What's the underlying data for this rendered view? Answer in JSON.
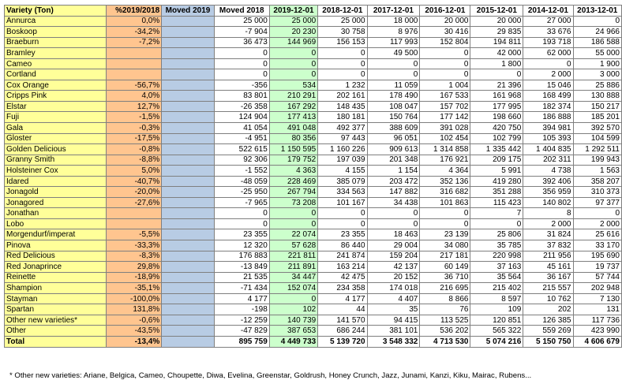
{
  "columns": [
    "Variety (Ton)",
    "%2019/2018",
    "Moved 2019",
    "Moved 2018",
    "2019-12-01",
    "2018-12-01",
    "2017-12-01",
    "2016-12-01",
    "2015-12-01",
    "2014-12-01",
    "2013-12-01"
  ],
  "rows": [
    [
      "Annurca",
      "0,0%",
      "",
      "25 000",
      "25 000",
      "25 000",
      "18 000",
      "20 000",
      "20 000",
      "27 000",
      "0"
    ],
    [
      "Boskoop",
      "-34,2%",
      "",
      "-7 904",
      "20 230",
      "30 758",
      "8 976",
      "30 416",
      "29 835",
      "33 676",
      "24 966"
    ],
    [
      "Braeburn",
      "-7,2%",
      "",
      "36 473",
      "144 969",
      "156 153",
      "117 993",
      "152 804",
      "194 811",
      "193 718",
      "186 588"
    ],
    [
      "Bramley",
      "",
      "",
      "0",
      "0",
      "0",
      "49 500",
      "0",
      "42 000",
      "62 000",
      "55 000"
    ],
    [
      "Cameo",
      "",
      "",
      "0",
      "0",
      "0",
      "0",
      "0",
      "1 800",
      "0",
      "1 900"
    ],
    [
      "Cortland",
      "",
      "",
      "0",
      "0",
      "0",
      "0",
      "0",
      "0",
      "2 000",
      "3 000"
    ],
    [
      "Cox Orange",
      "-56,7%",
      "",
      "-356",
      "534",
      "1 232",
      "11 059",
      "1 004",
      "21 396",
      "15 046",
      "25 886"
    ],
    [
      "Cripps Pink",
      "4,0%",
      "",
      "83 801",
      "210 291",
      "202 161",
      "178 490",
      "167 533",
      "161 968",
      "168 499",
      "130 888"
    ],
    [
      "Elstar",
      "12,7%",
      "",
      "-26 358",
      "167 292",
      "148 435",
      "108 047",
      "157 702",
      "177 995",
      "182 374",
      "150 217"
    ],
    [
      "Fuji",
      "-1,5%",
      "",
      "124 904",
      "177 413",
      "180 181",
      "150 764",
      "177 142",
      "198 660",
      "186 888",
      "185 201"
    ],
    [
      "Gala",
      "-0,3%",
      "",
      "41 054",
      "491 048",
      "492 377",
      "388 609",
      "391 028",
      "420 750",
      "394 981",
      "392 570"
    ],
    [
      "Gloster",
      "-17,5%",
      "",
      "-4 951",
      "80 356",
      "97 443",
      "96 051",
      "102 454",
      "102 799",
      "105 393",
      "104 599"
    ],
    [
      "Golden Delicious",
      "-0,8%",
      "",
      "522 615",
      "1 150 595",
      "1 160 226",
      "909 613",
      "1 314 858",
      "1 335 442",
      "1 404 835",
      "1 292 511"
    ],
    [
      "Granny Smith",
      "-8,8%",
      "",
      "92 306",
      "179 752",
      "197 039",
      "201 348",
      "176 921",
      "209 175",
      "202 311",
      "199 943"
    ],
    [
      "Holsteiner Cox",
      "5,0%",
      "",
      "-1 552",
      "4 363",
      "4 155",
      "1 154",
      "4 364",
      "5 991",
      "4 738",
      "1 563"
    ],
    [
      "Idared",
      "-40,7%",
      "",
      "-48 059",
      "228 469",
      "385 079",
      "203 472",
      "352 136",
      "419 280",
      "392 406",
      "358 207"
    ],
    [
      "Jonagold",
      "-20,0%",
      "",
      "-25 950",
      "267 794",
      "334 563",
      "147 882",
      "316 682",
      "351 288",
      "356 959",
      "310 373"
    ],
    [
      "Jonagored",
      "-27,6%",
      "",
      "-7 965",
      "73 208",
      "101 167",
      "34 438",
      "101 863",
      "115 423",
      "140 802",
      "97 377"
    ],
    [
      "Jonathan",
      "",
      "",
      "0",
      "0",
      "0",
      "0",
      "0",
      "7",
      "8",
      "0"
    ],
    [
      "Lobo",
      "",
      "",
      "0",
      "0",
      "0",
      "0",
      "0",
      "0",
      "2 000",
      "2 000"
    ],
    [
      "Morgendurf/imperat",
      "-5,5%",
      "",
      "23 355",
      "22 074",
      "23 355",
      "18 463",
      "23 139",
      "25 806",
      "31 824",
      "25 616"
    ],
    [
      "Pinova",
      "-33,3%",
      "",
      "12 320",
      "57 628",
      "86 440",
      "29 004",
      "34 080",
      "35 785",
      "37 832",
      "33 170"
    ],
    [
      "Red Delicious",
      "-8,3%",
      "",
      "176 883",
      "221 811",
      "241 874",
      "159 204",
      "217 181",
      "220 998",
      "211 956",
      "195 690"
    ],
    [
      "Red Jonaprince",
      "29,8%",
      "",
      "-13 849",
      "211 891",
      "163 214",
      "42 137",
      "60 149",
      "37 163",
      "45 161",
      "19 737"
    ],
    [
      "Reinette",
      "-18,9%",
      "",
      "21 535",
      "34 447",
      "42 475",
      "20 152",
      "36 710",
      "35 564",
      "36 167",
      "57 744"
    ],
    [
      "Shampion",
      "-35,1%",
      "",
      "-71 434",
      "152 074",
      "234 358",
      "174 018",
      "216 695",
      "215 402",
      "215 557",
      "202 948"
    ],
    [
      "Stayman",
      "-100,0%",
      "",
      "4 177",
      "0",
      "4 177",
      "4 407",
      "8 866",
      "8 597",
      "10 762",
      "7 130"
    ],
    [
      "Spartan",
      "131,8%",
      "",
      "-198",
      "102",
      "44",
      "35",
      "76",
      "109",
      "202",
      "131"
    ],
    [
      "Other new varieties*",
      "-0,6%",
      "",
      "-12 259",
      "140 739",
      "141 570",
      "94 415",
      "113 525",
      "120 851",
      "126 385",
      "117 736"
    ],
    [
      "Other",
      "-43,5%",
      "",
      "-47 829",
      "387 653",
      "686 244",
      "381 101",
      "536 202",
      "565 322",
      "559 269",
      "423 990"
    ]
  ],
  "total": [
    "Total",
    "-13,4%",
    "",
    "895 759",
    "4 449 733",
    "5 139 720",
    "3 548 332",
    "4 713 530",
    "5 074 216",
    "5 150 750",
    "4 606 679"
  ],
  "footnote": "* Other new varieties: Ariane, Belgica, Cameo, Choupette, Diwa, Evelina, Greenstar, Goldrush, Honey Crunch, Jazz, Junami, Kanzi, Kiku, Mairac, Rubens...",
  "colors": {
    "variety": "#ffff99",
    "pct": "#ffc58f",
    "moved2019": "#b8cce4",
    "current": "#ccffcc"
  }
}
